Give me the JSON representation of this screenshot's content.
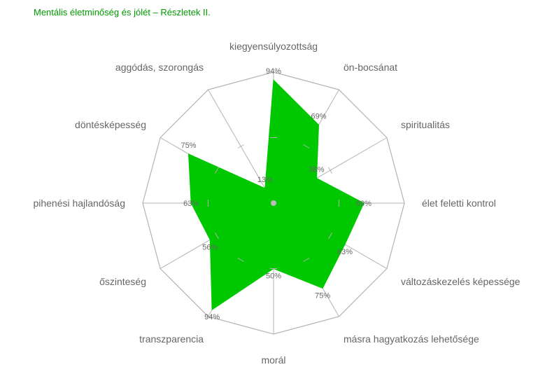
{
  "title": "Mentális életminőség és jólét – Részletek II.",
  "colors": {
    "title": "#009900",
    "series_fill": "#00c800",
    "grid": "#b3b3b3",
    "text": "#666666"
  },
  "chart_data": {
    "type": "radar",
    "title": "Mentális életminőség és jólét – Részletek II.",
    "range": [
      0,
      100
    ],
    "categories": [
      "kiegyensúlyozottság",
      "ön-bocsánat",
      "spiritualitás",
      "élet feletti kontrol",
      "változáskezelés képessége",
      "másra hagyatkozás lehetősége",
      "morál",
      "transzparencia",
      "őszinteség",
      "pihenési hajlandóság",
      "döntésképesség",
      "aggódás, szorongás"
    ],
    "values": [
      94,
      69,
      38,
      69,
      63,
      75,
      50,
      94,
      56,
      63,
      75,
      13
    ],
    "value_labels": [
      "94%",
      "69%",
      "38%",
      "69%",
      "63%",
      "75%",
      "50%",
      "94%",
      "56%",
      "63%",
      "75%",
      "13%"
    ]
  }
}
